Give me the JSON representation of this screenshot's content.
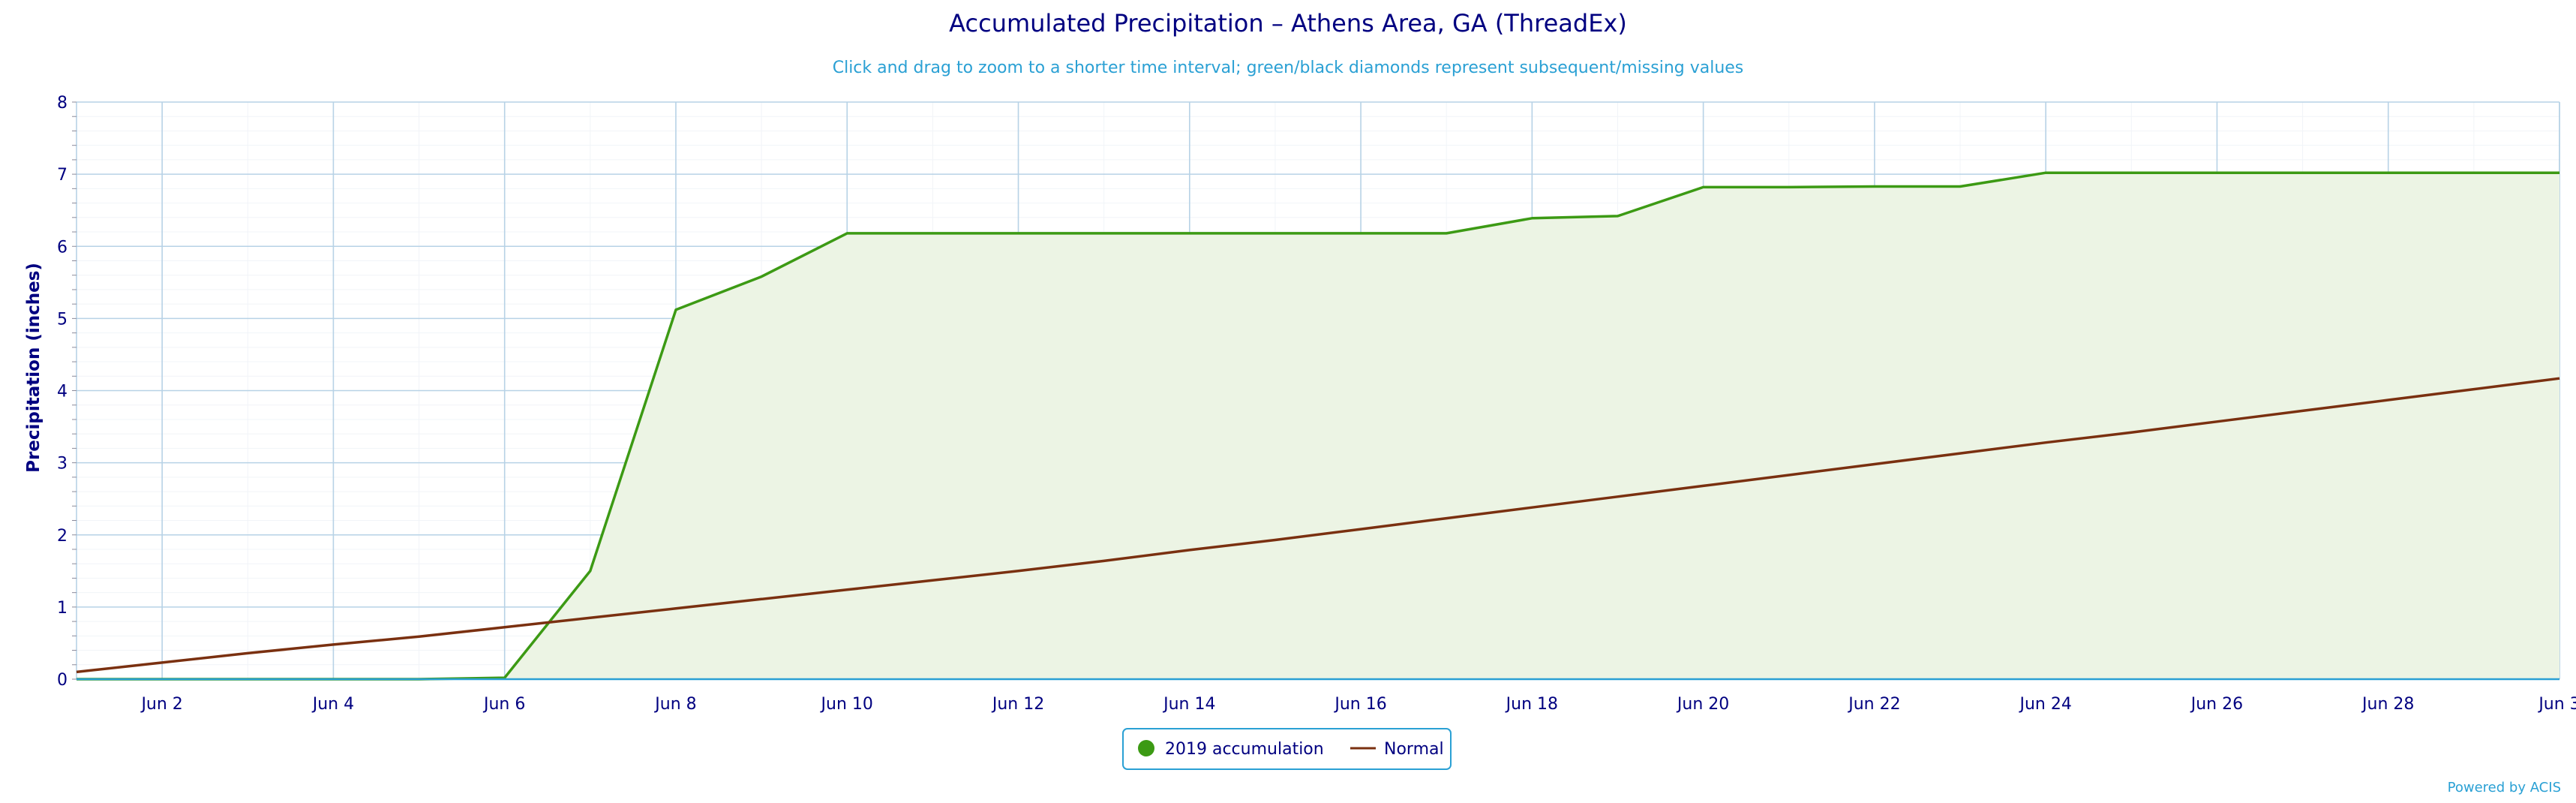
{
  "chart_data": {
    "type": "area",
    "title": "Accumulated Precipitation – Athens Area, GA (ThreadEx)",
    "subtitle": "Click and drag to zoom to a shorter time interval; green/black diamonds represent subsequent/missing values",
    "ylabel": "Precipitation (inches)",
    "xlabel": "",
    "ylim": [
      0,
      8
    ],
    "xlim": [
      1,
      30
    ],
    "yticks": [
      "0",
      "1",
      "2",
      "3",
      "4",
      "5",
      "6",
      "7",
      "8"
    ],
    "xticks": [
      {
        "day": 2,
        "label": "Jun 2"
      },
      {
        "day": 4,
        "label": "Jun 4"
      },
      {
        "day": 6,
        "label": "Jun 6"
      },
      {
        "day": 8,
        "label": "Jun 8"
      },
      {
        "day": 10,
        "label": "Jun 10"
      },
      {
        "day": 12,
        "label": "Jun 12"
      },
      {
        "day": 14,
        "label": "Jun 14"
      },
      {
        "day": 16,
        "label": "Jun 16"
      },
      {
        "day": 18,
        "label": "Jun 18"
      },
      {
        "day": 20,
        "label": "Jun 20"
      },
      {
        "day": 22,
        "label": "Jun 22"
      },
      {
        "day": 24,
        "label": "Jun 24"
      },
      {
        "day": 26,
        "label": "Jun 26"
      },
      {
        "day": 28,
        "label": "Jun 28"
      },
      {
        "day": 30,
        "label": "Jun 3"
      }
    ],
    "grid": true,
    "legend_position": "bottom-center",
    "series": [
      {
        "name": "2019 accumulation",
        "style": "area",
        "color": "#3c9a14",
        "fill": "#ecf4e4",
        "x": [
          1,
          2,
          3,
          4,
          5,
          6,
          7,
          8,
          9,
          10,
          11,
          12,
          13,
          14,
          15,
          16,
          17,
          18,
          19,
          20,
          21,
          22,
          23,
          24,
          25,
          26,
          27,
          28,
          29,
          30
        ],
        "values": [
          0.0,
          0.0,
          0.0,
          0.0,
          0.0,
          0.02,
          1.5,
          5.12,
          5.58,
          6.18,
          6.18,
          6.18,
          6.18,
          6.18,
          6.18,
          6.18,
          6.18,
          6.39,
          6.42,
          6.82,
          6.82,
          6.83,
          6.83,
          7.02,
          7.02,
          7.02,
          7.02,
          7.02,
          7.02,
          7.02
        ]
      },
      {
        "name": "Normal",
        "style": "line",
        "color": "#7a3010",
        "x": [
          1,
          2,
          3,
          4,
          5,
          6,
          7,
          8,
          9,
          10,
          11,
          12,
          13,
          14,
          15,
          16,
          17,
          18,
          19,
          20,
          21,
          22,
          23,
          24,
          25,
          26,
          27,
          28,
          29,
          30
        ],
        "values": [
          0.1,
          0.23,
          0.36,
          0.48,
          0.59,
          0.72,
          0.85,
          0.98,
          1.11,
          1.24,
          1.37,
          1.5,
          1.64,
          1.79,
          1.93,
          2.08,
          2.23,
          2.38,
          2.53,
          2.68,
          2.83,
          2.98,
          3.13,
          3.28,
          3.42,
          3.57,
          3.72,
          3.87,
          4.02,
          4.17
        ]
      }
    ],
    "legend": {
      "items": [
        {
          "label": "2019 accumulation",
          "marker": "circle",
          "color": "#3c9a14"
        },
        {
          "label": "Normal",
          "marker": "line",
          "color": "#7a3010"
        }
      ]
    },
    "credit": "Powered by ACIS"
  }
}
